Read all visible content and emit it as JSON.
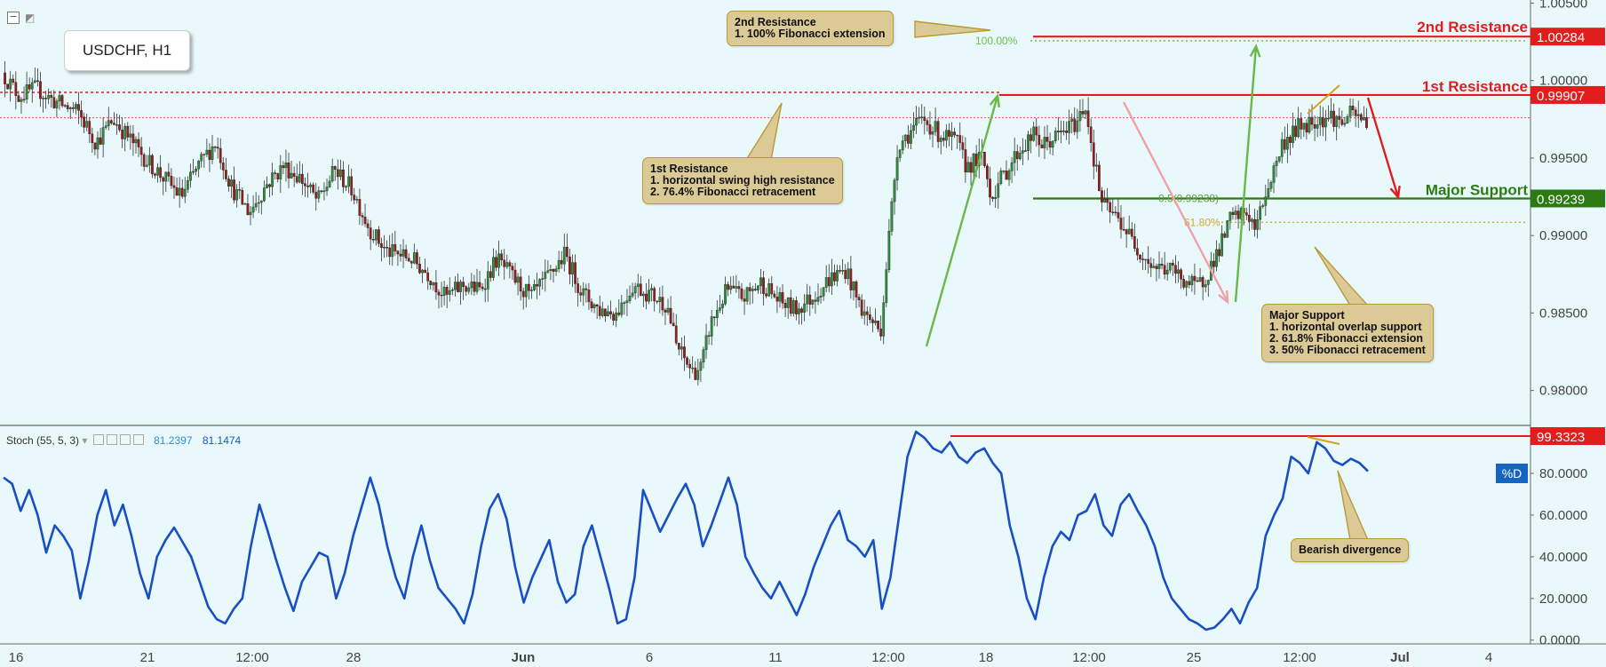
{
  "header": {
    "symbol": "USDCHF, H1"
  },
  "chart_data": {
    "type": "candlestick",
    "symbol": "USDCHF",
    "timeframe": "H1",
    "price_axis": {
      "ticks": [
        "1.00500",
        "1.00000",
        "0.99500",
        "0.99000",
        "0.98500",
        "0.98000"
      ],
      "ylim": [
        0.9778,
        1.0052
      ]
    },
    "x_axis": {
      "ticks": [
        "16",
        "21",
        "12:00",
        "28",
        "Jun",
        "6",
        "11",
        "12:00",
        "18",
        "12:00",
        "25",
        "12:00",
        "Jul",
        "4"
      ]
    },
    "price_path": [
      [
        0,
        1.0005
      ],
      [
        2,
        0.999
      ],
      [
        4,
        0.9995
      ],
      [
        6,
        0.9987
      ],
      [
        9,
        0.9979
      ],
      [
        11,
        0.996
      ],
      [
        13,
        0.9975
      ],
      [
        15,
        0.9962
      ],
      [
        17,
        0.9948
      ],
      [
        19,
        0.9937
      ],
      [
        21,
        0.9925
      ],
      [
        23,
        0.9945
      ],
      [
        25,
        0.996
      ],
      [
        27,
        0.993
      ],
      [
        29,
        0.9915
      ],
      [
        31,
        0.9933
      ],
      [
        33,
        0.9945
      ],
      [
        35,
        0.9937
      ],
      [
        37,
        0.9922
      ],
      [
        39,
        0.9942
      ],
      [
        41,
        0.993
      ],
      [
        43,
        0.9905
      ],
      [
        45,
        0.989
      ],
      [
        48,
        0.9885
      ],
      [
        50,
        0.9875
      ],
      [
        52,
        0.986
      ],
      [
        54,
        0.9868
      ],
      [
        56,
        0.9865
      ],
      [
        58,
        0.9885
      ],
      [
        60,
        0.9872
      ],
      [
        62,
        0.986
      ],
      [
        64,
        0.9873
      ],
      [
        66,
        0.9888
      ],
      [
        68,
        0.9863
      ],
      [
        70,
        0.9852
      ],
      [
        72,
        0.985
      ],
      [
        74,
        0.9868
      ],
      [
        76,
        0.9862
      ],
      [
        78,
        0.9855
      ],
      [
        79,
        0.983
      ],
      [
        80,
        0.982
      ],
      [
        81,
        0.9812
      ],
      [
        82,
        0.9815
      ],
      [
        83,
        0.9842
      ],
      [
        85,
        0.9865
      ],
      [
        87,
        0.986
      ],
      [
        89,
        0.987
      ],
      [
        91,
        0.9858
      ],
      [
        93,
        0.9852
      ],
      [
        95,
        0.986
      ],
      [
        97,
        0.9872
      ],
      [
        99,
        0.9878
      ],
      [
        100,
        0.9862
      ],
      [
        101,
        0.985
      ],
      [
        102,
        0.9845
      ],
      [
        103,
        0.9838
      ],
      [
        104,
        0.99
      ],
      [
        105,
        0.9958
      ],
      [
        107,
        0.997
      ],
      [
        108,
        0.9975
      ],
      [
        110,
        0.9965
      ],
      [
        112,
        0.996
      ],
      [
        113,
        0.9945
      ],
      [
        115,
        0.995
      ],
      [
        116,
        0.9925
      ],
      [
        117,
        0.9935
      ],
      [
        119,
        0.9953
      ],
      [
        121,
        0.9965
      ],
      [
        122,
        0.9958
      ],
      [
        124,
        0.9965
      ],
      [
        126,
        0.9973
      ],
      [
        127,
        0.9985
      ],
      [
        128,
        0.995
      ],
      [
        129,
        0.992
      ],
      [
        131,
        0.991
      ],
      [
        133,
        0.9893
      ],
      [
        135,
        0.988
      ],
      [
        137,
        0.9878
      ],
      [
        139,
        0.987
      ],
      [
        140,
        0.9866
      ],
      [
        141,
        0.9872
      ],
      [
        143,
        0.9895
      ],
      [
        144,
        0.991
      ],
      [
        146,
        0.9915
      ],
      [
        147,
        0.9903
      ],
      [
        148,
        0.9925
      ],
      [
        149,
        0.994
      ],
      [
        150,
        0.9958
      ],
      [
        152,
        0.997
      ],
      [
        154,
        0.9975
      ],
      [
        156,
        0.9977
      ],
      [
        157,
        0.9972
      ],
      [
        158,
        0.9978
      ],
      [
        159,
        0.9976
      ],
      [
        160,
        0.9974
      ]
    ],
    "levels": [
      {
        "name": "2nd Resistance",
        "value": 1.00284,
        "label": "1.00284",
        "color": "#e01e1e"
      },
      {
        "name": "1st Resistance",
        "value": 0.99907,
        "label": "0.99907",
        "color": "#e01e1e"
      },
      {
        "name": "Major Support",
        "value": 0.99239,
        "label": "0.99239",
        "color": "#2b7a12"
      }
    ],
    "fib": [
      {
        "label": "100.00%",
        "value": 1.00257,
        "color": "#6cc04a"
      },
      {
        "label": "0.5(0.99238)",
        "value": 0.99238,
        "color": "#6a9a3a"
      },
      {
        "label": "61.80%",
        "value": 0.99085,
        "color": "#d4a82a"
      }
    ],
    "current_price": 0.9976,
    "stochastic": {
      "name": "Stoch (55, 5, 3)",
      "k_value": "81.2397",
      "d_value": "81.1474",
      "series_label": "%D",
      "ticks": [
        "80.0000",
        "60.0000",
        "40.0000",
        "20.0000",
        "0.0000"
      ],
      "ylim": [
        -1.4,
        103
      ],
      "d_path": [
        [
          0,
          78
        ],
        [
          1,
          75
        ],
        [
          2,
          62
        ],
        [
          3,
          72
        ],
        [
          4,
          60
        ],
        [
          5,
          42
        ],
        [
          6,
          55
        ],
        [
          7,
          50
        ],
        [
          8,
          43
        ],
        [
          9,
          20
        ],
        [
          10,
          38
        ],
        [
          11,
          60
        ],
        [
          12,
          72
        ],
        [
          13,
          55
        ],
        [
          14,
          65
        ],
        [
          15,
          50
        ],
        [
          16,
          32
        ],
        [
          17,
          20
        ],
        [
          18,
          40
        ],
        [
          19,
          48
        ],
        [
          20,
          54
        ],
        [
          22,
          40
        ],
        [
          23,
          28
        ],
        [
          24,
          16
        ],
        [
          25,
          10
        ],
        [
          26,
          8
        ],
        [
          27,
          15
        ],
        [
          28,
          20
        ],
        [
          29,
          45
        ],
        [
          30,
          65
        ],
        [
          31,
          52
        ],
        [
          32,
          38
        ],
        [
          33,
          25
        ],
        [
          34,
          14
        ],
        [
          35,
          28
        ],
        [
          36,
          35
        ],
        [
          37,
          42
        ],
        [
          38,
          40
        ],
        [
          39,
          20
        ],
        [
          40,
          32
        ],
        [
          41,
          50
        ],
        [
          43,
          78
        ],
        [
          44,
          65
        ],
        [
          45,
          45
        ],
        [
          46,
          30
        ],
        [
          47,
          20
        ],
        [
          48,
          40
        ],
        [
          49,
          55
        ],
        [
          50,
          38
        ],
        [
          51,
          25
        ],
        [
          52,
          20
        ],
        [
          53,
          15
        ],
        [
          54,
          8
        ],
        [
          55,
          22
        ],
        [
          56,
          45
        ],
        [
          57,
          63
        ],
        [
          58,
          70
        ],
        [
          59,
          58
        ],
        [
          60,
          35
        ],
        [
          61,
          18
        ],
        [
          62,
          30
        ],
        [
          64,
          48
        ],
        [
          65,
          28
        ],
        [
          66,
          18
        ],
        [
          67,
          22
        ],
        [
          68,
          45
        ],
        [
          69,
          55
        ],
        [
          70,
          40
        ],
        [
          71,
          25
        ],
        [
          72,
          8
        ],
        [
          73,
          10
        ],
        [
          74,
          30
        ],
        [
          75,
          72
        ],
        [
          76,
          62
        ],
        [
          77,
          52
        ],
        [
          78,
          60
        ],
        [
          79,
          68
        ],
        [
          80,
          75
        ],
        [
          81,
          65
        ],
        [
          82,
          45
        ],
        [
          83,
          55
        ],
        [
          85,
          78
        ],
        [
          86,
          65
        ],
        [
          87,
          40
        ],
        [
          88,
          32
        ],
        [
          89,
          25
        ],
        [
          90,
          20
        ],
        [
          91,
          28
        ],
        [
          92,
          20
        ],
        [
          93,
          12
        ],
        [
          94,
          22
        ],
        [
          95,
          35
        ],
        [
          96,
          45
        ],
        [
          97,
          55
        ],
        [
          98,
          62
        ],
        [
          99,
          48
        ],
        [
          100,
          45
        ],
        [
          101,
          40
        ],
        [
          102,
          48
        ],
        [
          103,
          15
        ],
        [
          104,
          30
        ],
        [
          106,
          88
        ],
        [
          107,
          100
        ],
        [
          108,
          97
        ],
        [
          109,
          92
        ],
        [
          110,
          90
        ],
        [
          111,
          95
        ],
        [
          112,
          88
        ],
        [
          113,
          85
        ],
        [
          114,
          90
        ],
        [
          115,
          92
        ],
        [
          116,
          85
        ],
        [
          117,
          80
        ],
        [
          118,
          55
        ],
        [
          119,
          40
        ],
        [
          120,
          20
        ],
        [
          121,
          10
        ],
        [
          122,
          30
        ],
        [
          123,
          45
        ],
        [
          124,
          52
        ],
        [
          125,
          48
        ],
        [
          126,
          60
        ],
        [
          127,
          62
        ],
        [
          128,
          70
        ],
        [
          129,
          55
        ],
        [
          130,
          50
        ],
        [
          131,
          65
        ],
        [
          132,
          70
        ],
        [
          133,
          62
        ],
        [
          134,
          55
        ],
        [
          135,
          45
        ],
        [
          136,
          30
        ],
        [
          137,
          20
        ],
        [
          138,
          15
        ],
        [
          139,
          10
        ],
        [
          140,
          8
        ],
        [
          141,
          5
        ],
        [
          142,
          6
        ],
        [
          143,
          10
        ],
        [
          144,
          15
        ],
        [
          145,
          8
        ],
        [
          146,
          18
        ],
        [
          147,
          25
        ],
        [
          148,
          50
        ],
        [
          149,
          60
        ],
        [
          150,
          68
        ],
        [
          151,
          88
        ],
        [
          152,
          85
        ],
        [
          153,
          80
        ],
        [
          154,
          95
        ],
        [
          155,
          92
        ],
        [
          156,
          86
        ],
        [
          157,
          84
        ],
        [
          158,
          87
        ],
        [
          159,
          85
        ],
        [
          160,
          81
        ]
      ]
    }
  },
  "annotations": {
    "res2_label": "2nd Resistance",
    "res1_label": "1st Resistance",
    "support_label": "Major Support",
    "stoch_tag": "99.3323",
    "callout_res2": "2nd Resistance\n1. 100% Fibonacci extension",
    "callout_res1": "1st Resistance\n1. horizontal swing high resistance\n2. 76.4% Fibonacci retracement",
    "callout_support": "Major Support\n1. horizontal overlap support\n2. 61.8% Fibonacci extension\n3. 50% Fibonacci retracement",
    "callout_div": "Bearish divergence"
  }
}
